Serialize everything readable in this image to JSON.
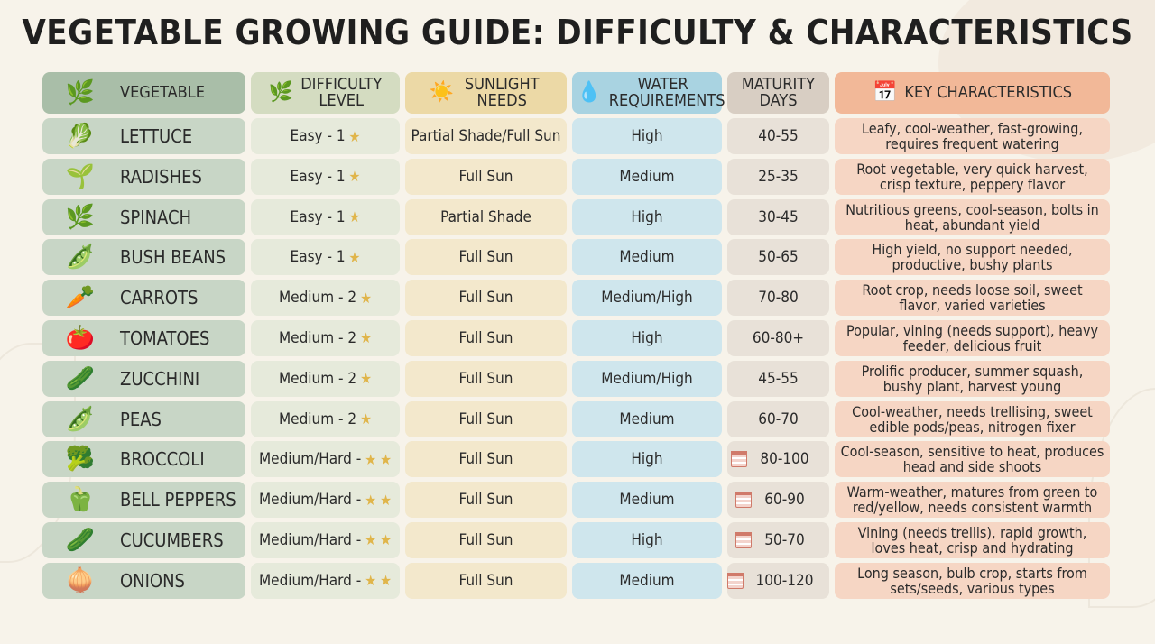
{
  "title": "VEGETABLE GROWING GUIDE: DIFFICULTY & CHARACTERISTICS",
  "headers": {
    "vegetable": "VEGETABLE",
    "difficulty": "DIFFICULTY LEVEL",
    "sunlight": "SUNLIGHT NEEDS",
    "water": "WATER REQUIREMENTS",
    "days": "MATURITY DAYS",
    "key": "KEY CHARACTERISTICS"
  },
  "icons": {
    "vegetable_header": "herb-icon",
    "difficulty_header": "leaf-icon",
    "sunlight_header": "sun-icon",
    "water_header": "water-drop-icon",
    "key_header": "calendar-icon",
    "star": "star-icon",
    "calendar": "calendar-icon"
  },
  "rows": [
    {
      "icon": "🥬",
      "icon_name": "lettuce-icon",
      "vegetable": "LETTUCE",
      "difficulty": "Easy - 1",
      "stars": 1,
      "sunlight": "Partial Shade/Full Sun",
      "water": "High",
      "days": "40-55",
      "calendar": false,
      "key": "Leafy, cool-weather, fast-growing, requires frequent watering"
    },
    {
      "icon": "🌱",
      "icon_name": "radish-icon",
      "vegetable": "RADISHES",
      "difficulty": "Easy - 1",
      "stars": 1,
      "sunlight": "Full Sun",
      "water": "Medium",
      "days": "25-35",
      "calendar": false,
      "key": "Root vegetable, very quick harvest, crisp texture, peppery flavor"
    },
    {
      "icon": "🌿",
      "icon_name": "spinach-icon",
      "vegetable": "SPINACH",
      "difficulty": "Easy - 1",
      "stars": 1,
      "sunlight": "Partial Shade",
      "water": "High",
      "days": "30-45",
      "calendar": false,
      "key": "Nutritious greens, cool-season, bolts in heat, abundant yield"
    },
    {
      "icon": "🫛",
      "icon_name": "bush-beans-icon",
      "vegetable": "BUSH BEANS",
      "difficulty": "Easy - 1",
      "stars": 1,
      "sunlight": "Full Sun",
      "water": "Medium",
      "days": "50-65",
      "calendar": false,
      "key": "High yield, no support needed, productive, bushy plants"
    },
    {
      "icon": "🥕",
      "icon_name": "carrot-icon",
      "vegetable": "CARROTS",
      "difficulty": "Medium - 2",
      "stars": 1,
      "sunlight": "Full Sun",
      "water": "Medium/High",
      "days": "70-80",
      "calendar": false,
      "key": "Root crop, needs loose soil, sweet flavor, varied varieties"
    },
    {
      "icon": "🍅",
      "icon_name": "tomato-icon",
      "vegetable": "TOMATOES",
      "difficulty": "Medium - 2",
      "stars": 1,
      "sunlight": "Full Sun",
      "water": "High",
      "days": "60-80+",
      "calendar": false,
      "key": "Popular, vining (needs support), heavy feeder, delicious fruit"
    },
    {
      "icon": "🥒",
      "icon_name": "zucchini-icon",
      "vegetable": "ZUCCHINI",
      "difficulty": "Medium - 2",
      "stars": 1,
      "sunlight": "Full Sun",
      "water": "Medium/High",
      "days": "45-55",
      "calendar": false,
      "key": "Prolific producer, summer squash, bushy plant, harvest young"
    },
    {
      "icon": "🫛",
      "icon_name": "peas-icon",
      "vegetable": "PEAS",
      "difficulty": "Medium - 2",
      "stars": 1,
      "sunlight": "Full Sun",
      "water": "Medium",
      "days": "60-70",
      "calendar": false,
      "key": "Cool-weather, needs trellising, sweet edible pods/peas, nitrogen fixer"
    },
    {
      "icon": "🥦",
      "icon_name": "broccoli-icon",
      "vegetable": "BROCCOLI",
      "difficulty": "Medium/Hard -",
      "stars": 2,
      "sunlight": "Full Sun",
      "water": "High",
      "days": "80-100",
      "calendar": true,
      "key": "Cool-season, sensitive to heat, produces head and side shoots"
    },
    {
      "icon": "🫑",
      "icon_name": "bell-pepper-icon",
      "vegetable": "BELL PEPPERS",
      "difficulty": "Medium/Hard -",
      "stars": 2,
      "sunlight": "Full Sun",
      "water": "Medium",
      "days": "60-90",
      "calendar": true,
      "key": "Warm-weather, matures from green to red/yellow, needs consistent warmth"
    },
    {
      "icon": "🥒",
      "icon_name": "cucumber-icon",
      "vegetable": "CUCUMBERS",
      "difficulty": "Medium/Hard -",
      "stars": 2,
      "sunlight": "Full Sun",
      "water": "High",
      "days": "50-70",
      "calendar": true,
      "key": "Vining (needs trellis), rapid growth, loves heat, crisp and hydrating"
    },
    {
      "icon": "🧅",
      "icon_name": "onion-icon",
      "vegetable": "ONIONS",
      "difficulty": "Medium/Hard -",
      "stars": 2,
      "sunlight": "Full Sun",
      "water": "Medium",
      "days": "100-120",
      "calendar": true,
      "key": "Long season, bulb crop, starts from sets/seeds, various types"
    }
  ]
}
